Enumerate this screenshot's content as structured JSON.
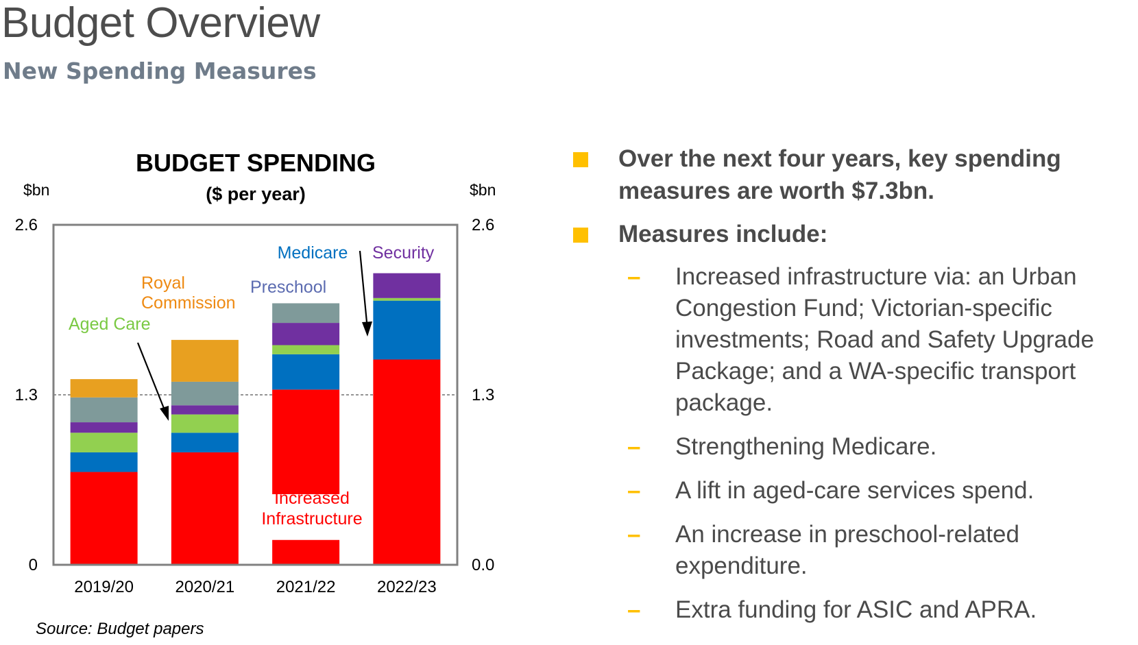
{
  "header": {
    "title": "Budget Overview",
    "subtitle": "New Spending Measures"
  },
  "chart_data": {
    "type": "bar",
    "stacked": true,
    "title": "BUDGET SPENDING",
    "subtitle": "($ per year)",
    "ylabel_left": "$bn",
    "ylabel_right": "$bn",
    "ylim": [
      0,
      2.6
    ],
    "left_ticks": [
      "0",
      "1.3",
      "2.6"
    ],
    "right_ticks": [
      "0.0",
      "1.3",
      "2.6"
    ],
    "gridline_at": 1.3,
    "categories": [
      "2019/20",
      "2020/21",
      "2021/22",
      "2022/23"
    ],
    "series": [
      {
        "name": "Increased Infrastructure",
        "color": "#ff0000",
        "values": [
          0.71,
          0.86,
          1.34,
          1.57
        ]
      },
      {
        "name": "Medicare",
        "color": "#0070c0",
        "values": [
          0.15,
          0.15,
          0.27,
          0.45
        ]
      },
      {
        "name": "Aged Care",
        "color": "#92d050",
        "values": [
          0.15,
          0.14,
          0.07,
          0.02
        ]
      },
      {
        "name": "Security",
        "color": "#7030a0",
        "values": [
          0.08,
          0.07,
          0.17,
          0.19
        ]
      },
      {
        "name": "Preschool",
        "color": "#7f9a9a",
        "values": [
          0.19,
          0.18,
          0.15,
          0
        ]
      },
      {
        "name": "Royal Commission",
        "color": "#e8a020",
        "values": [
          0.14,
          0.32,
          0,
          0
        ]
      }
    ],
    "annotations": [
      {
        "text": "Increased Infrastructure",
        "color": "#ff0000"
      },
      {
        "text": "Medicare",
        "color": "#0070c0"
      },
      {
        "text": "Security",
        "color": "#7030a0"
      },
      {
        "text": "Preschool",
        "color": "#5b6bb0"
      },
      {
        "text": "Royal Commission",
        "color": "#ee8a12"
      },
      {
        "text": "Aged Care",
        "color": "#7ac943"
      }
    ],
    "source": "Source: Budget papers"
  },
  "bullets": [
    {
      "text": "Over the next four years, key spending measures are worth $7.3bn.",
      "sub": []
    },
    {
      "text": "Measures include:",
      "sub": [
        "Increased infrastructure via: an Urban Congestion Fund; Victorian-specific investments; Road and Safety Upgrade Package; and a WA-specific transport package.",
        "Strengthening Medicare.",
        "A lift in aged-care services spend.",
        "An increase in preschool-related expenditure.",
        "Extra funding for ASIC and APRA."
      ]
    }
  ],
  "colors": {
    "bullet_square": "#ffc000",
    "dash": "#ffc000",
    "bullet_text": "#4a4a4a",
    "title": "#4d4d4d",
    "subtitle": "#6f7c8a"
  }
}
